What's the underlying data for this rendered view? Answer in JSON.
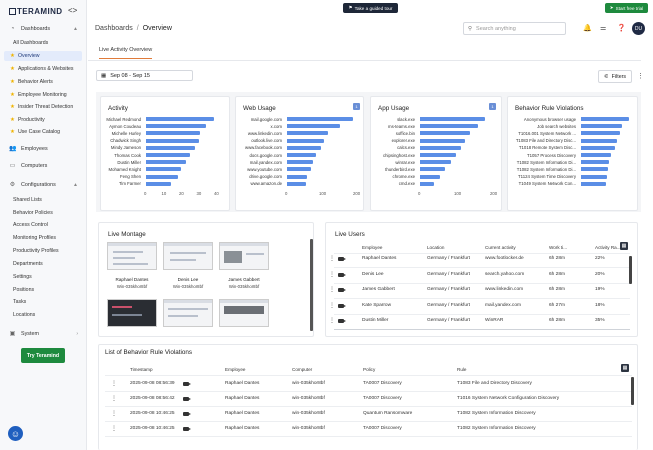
{
  "app": {
    "brand": "TERAMIND"
  },
  "sidebar": {
    "dashboards": "Dashboards",
    "items": [
      {
        "label": "All Dashboards"
      },
      {
        "label": "Overview"
      },
      {
        "label": "Applications & Websites"
      },
      {
        "label": "Behavior Alerts"
      },
      {
        "label": "Employee Monitoring"
      },
      {
        "label": "Insider Threat Detection"
      },
      {
        "label": "Productivity"
      },
      {
        "label": "Use Case Catalog"
      }
    ],
    "employees": "Employees",
    "computers": "Computers",
    "configurations": "Configurations",
    "config_items": [
      "Shared Lists",
      "Behavior Policies",
      "Access Control",
      "Monitoring Profiles",
      "Productivity Profiles",
      "Departments",
      "Settings",
      "Positions",
      "Tasks",
      "Locations"
    ],
    "system": "System",
    "try_button": "Try Teramind"
  },
  "topbar": {
    "tour": "Take a guided tour",
    "trial": "Start free trial",
    "breadcrumb_root": "Dashboards",
    "breadcrumb_current": "Overview",
    "search_placeholder": "Search anything",
    "avatar": "DU"
  },
  "tabs": [
    {
      "label": "Live Activity Overview"
    }
  ],
  "filters": {
    "date_range": "Sep 08 - Sep 15",
    "filters_label": "Filters"
  },
  "colors": {
    "accent": "#e07b3a",
    "bar": "#5b8ee6",
    "green": "#1e8a3e",
    "dark": "#1e2738"
  },
  "charts": [
    {
      "title": "Activity",
      "labels": [
        "Michael Redmond",
        "Aymon Coudeau",
        "Michelle Hurley",
        "Chadwick Singh",
        "Mindy Jameson",
        "Thomas Cook",
        "Dustin Miller",
        "Mohamed Knight",
        "Feng Shen",
        "Tim Farmer"
      ],
      "values": [
        39,
        34,
        31,
        30,
        28,
        25,
        23,
        20,
        18,
        14
      ],
      "ticks": [
        "0",
        "10",
        "20",
        "30",
        "40"
      ],
      "max": 40
    },
    {
      "title": "Web Usage",
      "badge": "1",
      "labels": [
        "mail.google.com",
        "x.com",
        "www.linkedin.com",
        "outlook.live.com",
        "www.facebook.com",
        "docs.google.com",
        "mail.yandex.com",
        "www.youtube.com",
        "drive.google.com",
        "www.amazon.de"
      ],
      "values": [
        195,
        155,
        120,
        110,
        100,
        85,
        75,
        70,
        60,
        55
      ],
      "ticks": [
        "0",
        "100",
        "200"
      ],
      "max": 200
    },
    {
      "title": "App Usage",
      "badge": "1",
      "labels": [
        "slack.exe",
        "ms-teams.exe",
        "soffice.bin",
        "explorer.exe",
        "calcs.exe",
        "chipsinghost.exe",
        "winrar.exe",
        "thunderbird.exe",
        "chrome.exe",
        "cmd.exe"
      ],
      "values": [
        180,
        160,
        140,
        125,
        115,
        100,
        85,
        70,
        55,
        40
      ],
      "ticks": [
        "0",
        "100",
        "200"
      ],
      "max": 200
    },
    {
      "title": "Behavior Rule Violations",
      "labels": [
        "Anonymous browser usage",
        "Job search websites",
        "T1016.001 System Network ...",
        "T1083 File and Directory Disc...",
        "T1018 Remote System Disc...",
        "T1057 Process Discovery",
        "T1082 System Information Di...",
        "T1082 System Information Di...",
        "T1124 System Time Discovery",
        "T1049 System Network Con..."
      ],
      "values": [
        2.1,
        1.8,
        1.7,
        1.6,
        1.5,
        1.3,
        1.25,
        1.2,
        1.15,
        1.1
      ],
      "ticks": [],
      "max": 2.2
    }
  ],
  "montage": {
    "title": "Live Montage",
    "items": [
      {
        "name": "Raphael Dantes",
        "host": "Win-035khor8bf"
      },
      {
        "name": "Denis Lee",
        "host": "Win-035khor8bf"
      },
      {
        "name": "James Gabbert",
        "host": "Win-035khor8bf"
      }
    ]
  },
  "live_users": {
    "title": "Live Users",
    "headers": [
      "Employee",
      "Location",
      "Current activity",
      "Work ti...",
      "Activity Ra..."
    ],
    "rows": [
      {
        "employee": "Raphael Dantes",
        "location": "Germany / Frankfurt",
        "activity": "www.footlocker.de",
        "work": "6h 28m",
        "rate": "22%"
      },
      {
        "employee": "Denis Lee",
        "location": "Germany / Frankfurt",
        "activity": "search.yahoo.com",
        "work": "6h 28m",
        "rate": "20%"
      },
      {
        "employee": "James Gabbert",
        "location": "Germany / Frankfurt",
        "activity": "www.linkedin.com",
        "work": "6h 28m",
        "rate": "19%"
      },
      {
        "employee": "Kate Sparrow",
        "location": "Germany / Frankfurt",
        "activity": "mail.yandex.com",
        "work": "6h 27m",
        "rate": "18%"
      },
      {
        "employee": "Dustin Miller",
        "location": "Germany / Frankfurt",
        "activity": "WinRAR",
        "work": "6h 28m",
        "rate": "35%"
      }
    ]
  },
  "violations": {
    "title": "List of Behavior Rule Violations",
    "headers": [
      "Timestamp",
      "Employee",
      "Computer",
      "Policy",
      "Rule"
    ],
    "rows": [
      {
        "ts": "2025-09-08 08:56:39",
        "employee": "Raphael Dantes",
        "computer": "win-035khor8bf",
        "policy": "TA0007 Discovery",
        "rule": "T1083 File and Directory Discovery"
      },
      {
        "ts": "2025-09-08 08:56:42",
        "employee": "Raphael Dantes",
        "computer": "win-035khor8bf",
        "policy": "TA0007 Discovery",
        "rule": "T1016 System Network Configuration Discovery"
      },
      {
        "ts": "2025-09-08 10:46:25",
        "employee": "Raphael Dantes",
        "computer": "win-035khor8bf",
        "policy": "Quantum Ransomware",
        "rule": "T1082 System Information Discovery"
      },
      {
        "ts": "2025-09-08 10:46:25",
        "employee": "Raphael Dantes",
        "computer": "win-035khor8bf",
        "policy": "TA0007 Discovery",
        "rule": "T1082 System Information Discovery"
      }
    ]
  }
}
